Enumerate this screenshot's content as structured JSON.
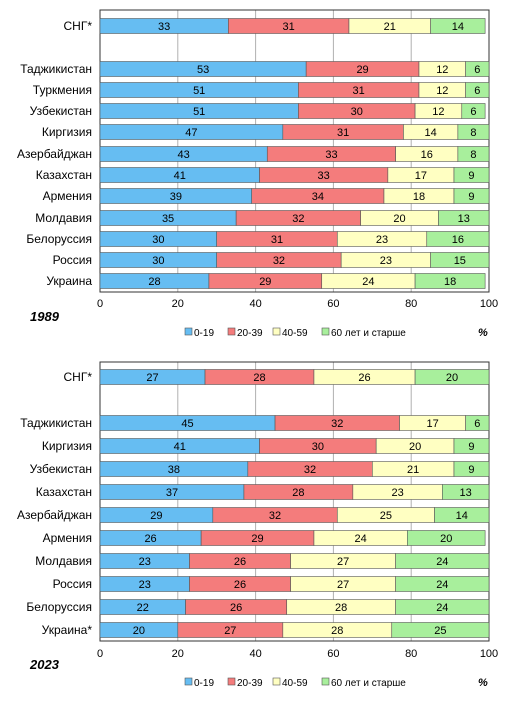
{
  "colors": {
    "age_0_19": "#66bdf2",
    "age_20_39": "#f47c7c",
    "age_40_59": "#ffffc2",
    "age_60_plus": "#a8ef9c",
    "grid": "#b0b0b0",
    "border": "#333333"
  },
  "chart_data": [
    {
      "type": "bar",
      "stacked": true,
      "orientation": "horizontal",
      "year_label": "1989",
      "unit_label": "%",
      "xlim": [
        0,
        100
      ],
      "xticks": [
        "0",
        "20",
        "40",
        "60",
        "80",
        "100"
      ],
      "grid": true,
      "legend_position": "bottom",
      "categories": [
        "СНГ*",
        "Таджикистан",
        "Туркмения",
        "Узбекистан",
        "Киргизия",
        "Азербайджан",
        "Казахстан",
        "Армения",
        "Молдавия",
        "Белоруссия",
        "Россия",
        "Украина"
      ],
      "series": [
        {
          "name": "0-19",
          "values": [
            33,
            53,
            51,
            51,
            47,
            43,
            41,
            39,
            35,
            30,
            30,
            28
          ]
        },
        {
          "name": "20-39",
          "values": [
            31,
            29,
            31,
            30,
            31,
            33,
            33,
            34,
            32,
            31,
            32,
            29
          ]
        },
        {
          "name": "40-59",
          "values": [
            21,
            12,
            12,
            12,
            14,
            16,
            17,
            18,
            20,
            23,
            23,
            24
          ]
        },
        {
          "name": "60 лет и старше",
          "values": [
            14,
            6,
            6,
            6,
            8,
            8,
            9,
            9,
            13,
            16,
            15,
            18
          ]
        }
      ]
    },
    {
      "type": "bar",
      "stacked": true,
      "orientation": "horizontal",
      "year_label": "2023",
      "unit_label": "%",
      "xlim": [
        0,
        100
      ],
      "xticks": [
        "0",
        "20",
        "40",
        "60",
        "80",
        "100"
      ],
      "grid": true,
      "legend_position": "bottom",
      "categories": [
        "СНГ*",
        "Таджикистан",
        "Киргизия",
        "Узбекистан",
        "Казахстан",
        "Азербайджан",
        "Армения",
        "Молдавия",
        "Россия",
        "Белоруссия",
        "Украина*"
      ],
      "series": [
        {
          "name": "0-19",
          "values": [
            27,
            45,
            41,
            38,
            37,
            29,
            26,
            23,
            23,
            22,
            20
          ]
        },
        {
          "name": "20-39",
          "values": [
            28,
            32,
            30,
            32,
            28,
            32,
            29,
            26,
            26,
            26,
            27
          ]
        },
        {
          "name": "40-59",
          "values": [
            26,
            17,
            20,
            21,
            23,
            25,
            24,
            27,
            27,
            28,
            28
          ]
        },
        {
          "name": "60 лет и старше",
          "values": [
            20,
            6,
            9,
            9,
            13,
            14,
            20,
            24,
            24,
            24,
            25
          ]
        }
      ]
    }
  ]
}
